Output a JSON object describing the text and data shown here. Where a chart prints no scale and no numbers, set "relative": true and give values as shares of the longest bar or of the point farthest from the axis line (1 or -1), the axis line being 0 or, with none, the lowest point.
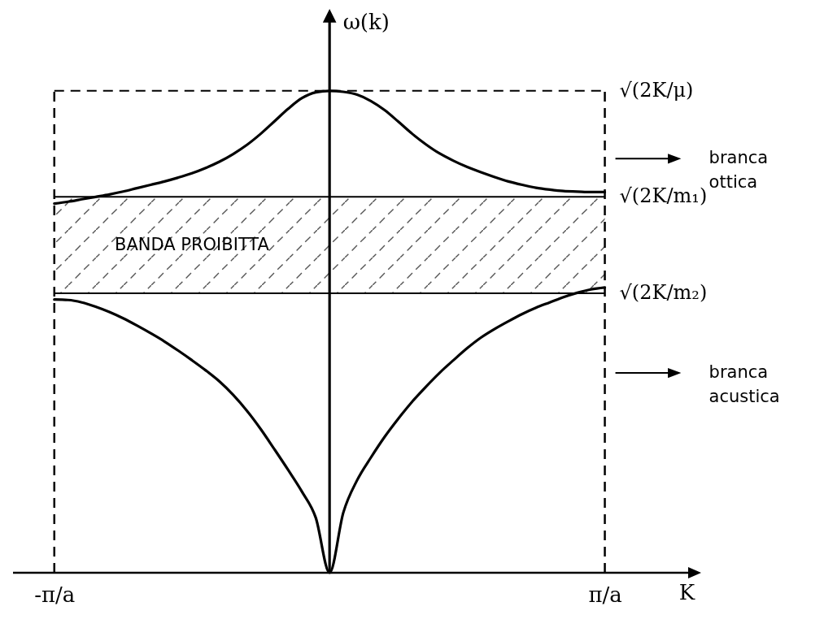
{
  "chart_data": {
    "type": "line",
    "relative": true,
    "xlabel": "K",
    "ylabel": "ω(k)",
    "legend": "right",
    "categories": [
      null,
      null,
      null,
      "-π/a",
      null,
      null,
      null,
      null,
      null,
      null,
      null,
      null,
      null,
      null,
      null,
      null,
      null,
      null,
      null,
      null,
      null,
      null,
      null,
      null,
      null,
      null,
      null,
      null,
      null,
      null,
      null,
      null,
      null,
      null,
      null,
      null,
      null,
      null,
      null,
      null,
      null,
      null,
      null,
      "π/a",
      null,
      null,
      null,
      null,
      null,
      null,
      null
    ],
    "series": [
      {
        "name": "branca ottica",
        "color": "#000000",
        "values": [
          null,
          null,
          null,
          0.766,
          0.77,
          0.775,
          0.78,
          0.785,
          0.791,
          0.798,
          0.805,
          0.812,
          0.82,
          0.829,
          0.84,
          0.853,
          0.869,
          0.888,
          0.911,
          0.937,
          0.963,
          0.985,
          0.997,
          1,
          0.998,
          0.992,
          0.979,
          0.96,
          0.936,
          0.911,
          0.889,
          0.87,
          0.855,
          0.842,
          0.831,
          0.821,
          0.812,
          0.805,
          0.799,
          0.795,
          0.792,
          0.791,
          0.79,
          0.79,
          null,
          null,
          null,
          null,
          null,
          null,
          null
        ]
      },
      {
        "name": "branca acustica",
        "color": "#000000",
        "values": [
          null,
          null,
          null,
          0.567,
          0.566,
          0.561,
          0.552,
          0.541,
          0.528,
          0.513,
          0.497,
          0.48,
          0.461,
          0.441,
          0.42,
          0.397,
          0.369,
          0.336,
          0.298,
          0.256,
          0.213,
          0.168,
          0.114,
          0,
          0.125,
          0.192,
          0.239,
          0.282,
          0.32,
          0.355,
          0.386,
          0.415,
          0.441,
          0.466,
          0.488,
          0.506,
          0.522,
          0.537,
          0.55,
          0.561,
          0.572,
          0.581,
          0.588,
          0.592,
          null,
          null,
          null,
          null,
          null,
          null,
          null
        ]
      }
    ],
    "ref_lines": [
      {
        "axis": "y",
        "value": 1,
        "label": "√(2K/μ)",
        "line_style": "dashed"
      },
      {
        "axis": "y",
        "value": 0.78,
        "label": "√(2K/m₁)",
        "line_style": "solid"
      },
      {
        "axis": "y",
        "value": 0.58,
        "label": "√(2K/m₂)",
        "line_style": "solid"
      },
      {
        "axis": "x",
        "value": "-π/a",
        "line_style": "dashed"
      },
      {
        "axis": "x",
        "value": "π/a",
        "line_style": "dashed"
      }
    ],
    "bands": [
      {
        "axis": "y",
        "from": 0.58,
        "to": 0.78,
        "label": "BANDA PROIBITTA"
      }
    ]
  }
}
